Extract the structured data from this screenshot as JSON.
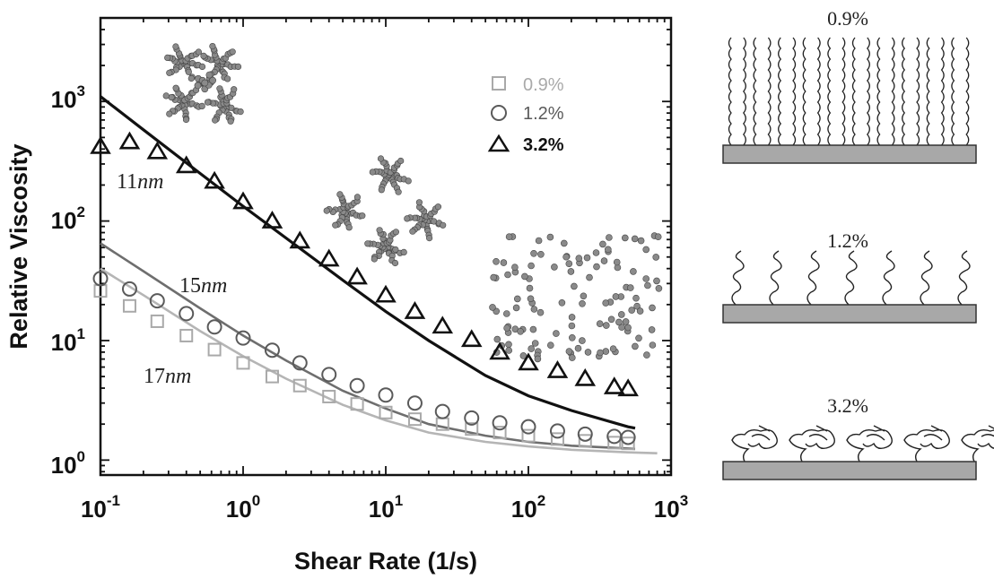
{
  "chart_data": {
    "type": "scatter",
    "xlabel": "Shear Rate (1/s)",
    "ylabel": "Relative Viscosity",
    "x_scale": "log",
    "y_scale": "log",
    "xlim": [
      0.1,
      1000
    ],
    "ylim": [
      0.75,
      5000
    ],
    "x_ticks": [
      {
        "value": 0.1,
        "base": "10",
        "exp": "-1"
      },
      {
        "value": 1,
        "base": "10",
        "exp": "0"
      },
      {
        "value": 10,
        "base": "10",
        "exp": "1"
      },
      {
        "value": 100,
        "base": "10",
        "exp": "2"
      },
      {
        "value": 1000,
        "base": "10",
        "exp": "3"
      }
    ],
    "y_ticks": [
      {
        "value": 1,
        "base": "10",
        "exp": "0"
      },
      {
        "value": 10,
        "base": "10",
        "exp": "1"
      },
      {
        "value": 100,
        "base": "10",
        "exp": "2"
      },
      {
        "value": 1000,
        "base": "10",
        "exp": "3"
      }
    ],
    "legend_position": "top-right",
    "series": [
      {
        "name": "0.9%",
        "marker": "square",
        "color": "#a9a9a9",
        "points": [
          [
            0.1,
            26
          ],
          [
            0.16,
            19.5
          ],
          [
            0.25,
            14.5
          ],
          [
            0.4,
            11
          ],
          [
            0.63,
            8.4
          ],
          [
            1.0,
            6.5
          ],
          [
            1.6,
            5.0
          ],
          [
            2.5,
            4.2
          ],
          [
            4.0,
            3.4
          ],
          [
            6.3,
            2.95
          ],
          [
            10,
            2.5
          ],
          [
            16,
            2.2
          ],
          [
            25,
            2.0
          ],
          [
            40,
            1.82
          ],
          [
            63,
            1.7
          ],
          [
            100,
            1.6
          ],
          [
            160,
            1.5
          ],
          [
            250,
            1.45
          ],
          [
            400,
            1.4
          ],
          [
            500,
            1.38
          ]
        ]
      },
      {
        "name": "1.2%",
        "marker": "circle",
        "color": "#5a5a5a",
        "points": [
          [
            0.1,
            33
          ],
          [
            0.16,
            27
          ],
          [
            0.25,
            21.5
          ],
          [
            0.4,
            16.8
          ],
          [
            0.63,
            13
          ],
          [
            1.0,
            10.5
          ],
          [
            1.6,
            8.3
          ],
          [
            2.5,
            6.5
          ],
          [
            4.0,
            5.2
          ],
          [
            6.3,
            4.2
          ],
          [
            10,
            3.5
          ],
          [
            16,
            3.0
          ],
          [
            25,
            2.55
          ],
          [
            40,
            2.25
          ],
          [
            63,
            2.05
          ],
          [
            100,
            1.9
          ],
          [
            160,
            1.75
          ],
          [
            250,
            1.65
          ],
          [
            400,
            1.58
          ],
          [
            500,
            1.55
          ]
        ]
      },
      {
        "name": "3.2%",
        "marker": "triangle",
        "color": "#111111",
        "points": [
          [
            0.1,
            420
          ],
          [
            0.16,
            460
          ],
          [
            0.25,
            380
          ],
          [
            0.4,
            290
          ],
          [
            0.63,
            215
          ],
          [
            1.0,
            145
          ],
          [
            1.6,
            100
          ],
          [
            2.5,
            68
          ],
          [
            4.0,
            48
          ],
          [
            6.3,
            34
          ],
          [
            10,
            24
          ],
          [
            16,
            17.5
          ],
          [
            25,
            13.2
          ],
          [
            40,
            10.2
          ],
          [
            63,
            8.0
          ],
          [
            100,
            6.5
          ],
          [
            160,
            5.6
          ],
          [
            250,
            4.8
          ],
          [
            400,
            4.1
          ],
          [
            500,
            3.95
          ]
        ]
      }
    ],
    "fit_curves": [
      {
        "color": "#111111",
        "width": 3.2,
        "points": [
          [
            0.1,
            1100
          ],
          [
            0.2,
            580
          ],
          [
            0.5,
            250
          ],
          [
            1,
            133
          ],
          [
            2,
            72
          ],
          [
            5,
            32
          ],
          [
            10,
            17.5
          ],
          [
            20,
            10
          ],
          [
            50,
            5.1
          ],
          [
            100,
            3.45
          ],
          [
            200,
            2.6
          ],
          [
            500,
            1.9
          ],
          [
            560,
            1.85
          ]
        ]
      },
      {
        "color": "#6e6e6e",
        "width": 2.6,
        "points": [
          [
            0.1,
            65
          ],
          [
            0.2,
            38
          ],
          [
            0.5,
            18.6
          ],
          [
            1,
            11
          ],
          [
            2,
            6.8
          ],
          [
            5,
            3.8
          ],
          [
            10,
            2.7
          ],
          [
            20,
            2.0
          ],
          [
            50,
            1.6
          ],
          [
            100,
            1.42
          ],
          [
            200,
            1.32
          ],
          [
            500,
            1.25
          ],
          [
            560,
            1.24
          ]
        ]
      },
      {
        "color": "#b5b5b5",
        "width": 2.6,
        "points": [
          [
            0.1,
            40
          ],
          [
            0.2,
            24
          ],
          [
            0.5,
            12
          ],
          [
            1,
            7.4
          ],
          [
            2,
            4.8
          ],
          [
            5,
            2.9
          ],
          [
            10,
            2.15
          ],
          [
            20,
            1.7
          ],
          [
            50,
            1.42
          ],
          [
            100,
            1.3
          ],
          [
            200,
            1.22
          ],
          [
            500,
            1.16
          ],
          [
            800,
            1.14
          ]
        ]
      }
    ],
    "annotations": [
      {
        "text": "11nm",
        "num": "11",
        "unit": "nm"
      },
      {
        "text": "15nm",
        "num": "15",
        "unit": "nm"
      },
      {
        "text": "17nm",
        "num": "17",
        "unit": "nm"
      }
    ]
  },
  "schematics": [
    {
      "label": "0.9%",
      "chain_style": "extended brush"
    },
    {
      "label": "1.2%",
      "chain_style": "short coils"
    },
    {
      "label": "3.2%",
      "chain_style": "collapsed mushrooms"
    }
  ]
}
